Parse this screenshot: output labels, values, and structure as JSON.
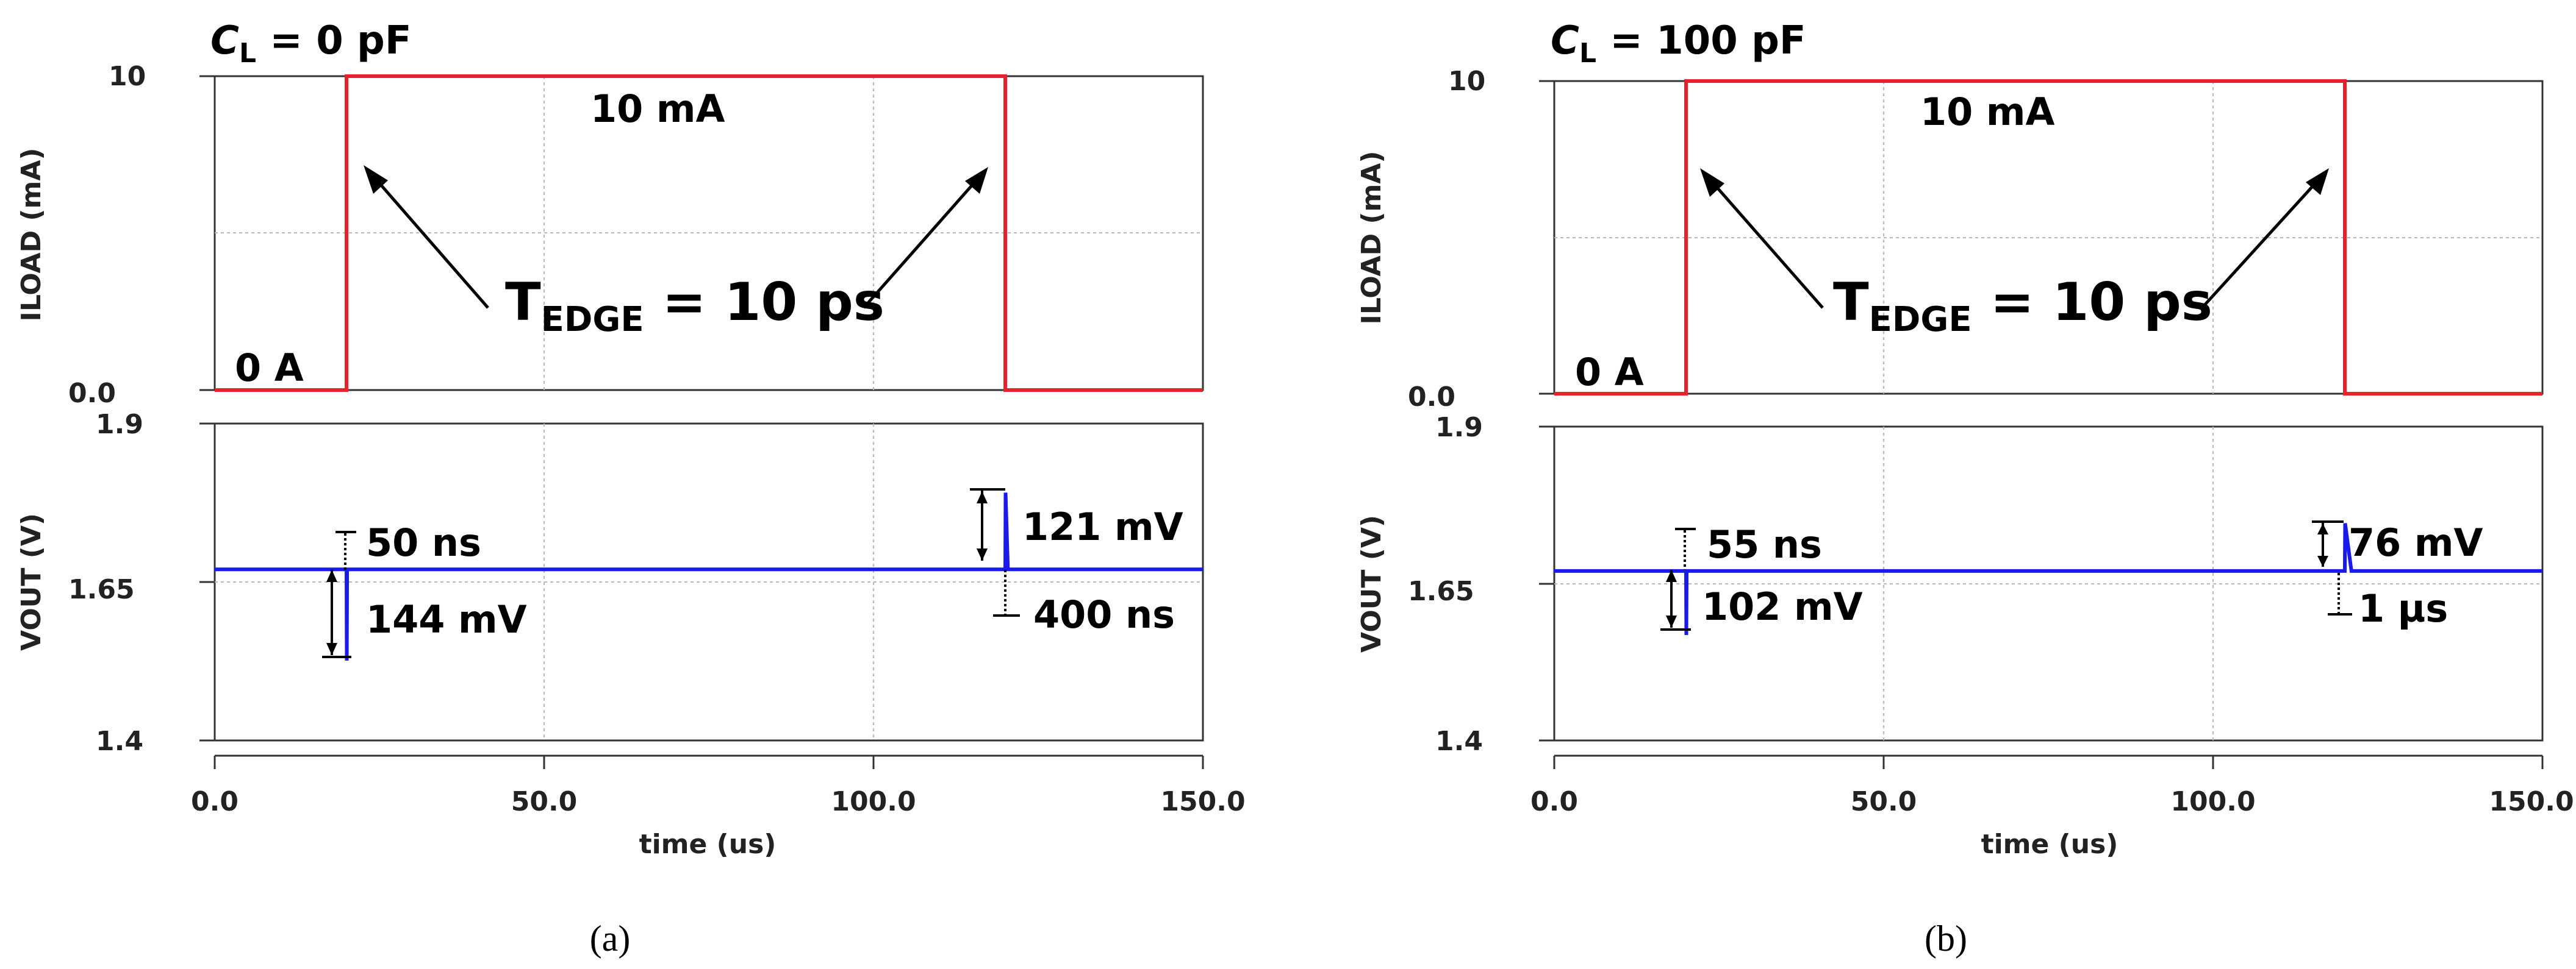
{
  "chart_data": [
    {
      "type": "line",
      "panel_label": "(a)",
      "condition": {
        "symbol": "C",
        "subscript": "L",
        "rest": " = 0 pF"
      },
      "x": {
        "label": "time (us)",
        "ticks": [
          "0.0",
          "50.0",
          "100.0",
          "150.0"
        ],
        "range": [
          0,
          150
        ]
      },
      "top": {
        "ylabel": "ILOAD (mA)",
        "ylim": [
          0,
          10
        ],
        "ticks": [
          "0.0",
          "10"
        ],
        "series": [
          {
            "name": "ILOAD",
            "color": "#e8212b",
            "points": [
              [
                0,
                0
              ],
              [
                20,
                0
              ],
              [
                20,
                10
              ],
              [
                120,
                10
              ],
              [
                120,
                0
              ],
              [
                150,
                0
              ]
            ]
          }
        ],
        "labels": {
          "high": "10 mA",
          "low": "0 A",
          "edge_main": "T",
          "edge_sub": "EDGE",
          "edge_rest": " = 10 ps"
        }
      },
      "bottom": {
        "ylabel": "VOUT (V)",
        "ylim": [
          1.4,
          1.9
        ],
        "ticks": [
          "1.4",
          "1.65",
          "1.9"
        ],
        "series": [
          {
            "name": "VOUT",
            "color": "#1a1aee",
            "points": [
              [
                0,
                1.67
              ],
              [
                20,
                1.67
              ],
              [
                20.05,
                1.526
              ],
              [
                20.1,
                1.67
              ],
              [
                120,
                1.67
              ],
              [
                120.05,
                1.791
              ],
              [
                120.4,
                1.67
              ],
              [
                150,
                1.67
              ]
            ]
          }
        ],
        "annotations": {
          "rise_time_1": "50 ns",
          "drop": "144 mV",
          "overshoot": "121 mV",
          "recovery": "400 ns"
        }
      },
      "caption": "(a)"
    },
    {
      "type": "line",
      "panel_label": "(b)",
      "condition": {
        "symbol": "C",
        "subscript": "L",
        "rest": " = 100 pF"
      },
      "x": {
        "label": "time (us)",
        "ticks": [
          "0.0",
          "50.0",
          "100.0",
          "150.0"
        ],
        "range": [
          0,
          150
        ]
      },
      "top": {
        "ylabel": "ILOAD (mA)",
        "ylim": [
          0,
          10
        ],
        "ticks": [
          "0.0",
          "10"
        ],
        "series": [
          {
            "name": "ILOAD",
            "color": "#e8212b",
            "points": [
              [
                0,
                0
              ],
              [
                20,
                0
              ],
              [
                20,
                10
              ],
              [
                120,
                10
              ],
              [
                120,
                0
              ],
              [
                150,
                0
              ]
            ]
          }
        ],
        "labels": {
          "high": "10 mA",
          "low": "0 A",
          "edge_main": "T",
          "edge_sub": "EDGE",
          "edge_rest": " = 10 ps"
        }
      },
      "bottom": {
        "ylabel": "VOUT (V)",
        "ylim": [
          1.4,
          1.9
        ],
        "ticks": [
          "1.4",
          "1.65",
          "1.9"
        ],
        "series": [
          {
            "name": "VOUT",
            "color": "#1a1aee",
            "points": [
              [
                0,
                1.67
              ],
              [
                20,
                1.67
              ],
              [
                20.05,
                1.568
              ],
              [
                20.1,
                1.67
              ],
              [
                120,
                1.67
              ],
              [
                120.05,
                1.746
              ],
              [
                121,
                1.67
              ],
              [
                150,
                1.67
              ]
            ]
          }
        ],
        "annotations": {
          "rise_time_1": "55 ns",
          "drop": "102 mV",
          "overshoot": "76 mV",
          "recovery": "1 µs"
        }
      },
      "caption": "(b)"
    }
  ]
}
